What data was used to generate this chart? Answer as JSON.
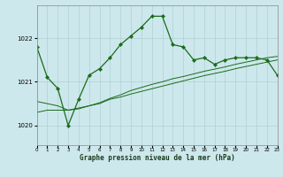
{
  "xlabel": "Graphe pression niveau de la mer (hPa)",
  "bg_color": "#cde8ec",
  "grid_color": "#b0d0d4",
  "line_color": "#1a6b1a",
  "ylim": [
    1019.55,
    1022.75
  ],
  "xlim": [
    0,
    23
  ],
  "yticks": [
    1020,
    1021,
    1022
  ],
  "xticks": [
    0,
    1,
    2,
    3,
    4,
    5,
    6,
    7,
    8,
    9,
    10,
    11,
    12,
    13,
    14,
    15,
    16,
    17,
    18,
    19,
    20,
    21,
    22,
    23
  ],
  "line1_x": [
    0,
    1,
    2,
    3,
    4,
    5,
    6,
    7,
    8,
    9,
    10,
    11,
    12,
    13,
    14,
    15,
    16,
    17,
    18,
    19,
    20,
    21,
    22,
    23
  ],
  "line1_y": [
    1021.8,
    1021.1,
    1020.85,
    1020.0,
    1020.6,
    1021.15,
    1021.3,
    1021.55,
    1021.85,
    1022.05,
    1022.25,
    1022.5,
    1022.5,
    1021.85,
    1021.8,
    1021.5,
    1021.55,
    1021.4,
    1021.5,
    1021.55,
    1021.55,
    1021.55,
    1021.5,
    1021.15
  ],
  "line2_x": [
    0,
    1,
    2,
    3,
    4,
    5,
    6,
    7,
    8,
    9,
    10,
    11,
    12,
    13,
    14,
    15,
    16,
    17,
    18,
    19,
    20,
    21,
    22,
    23
  ],
  "line2_y": [
    1020.3,
    1020.35,
    1020.35,
    1020.35,
    1020.4,
    1020.45,
    1020.5,
    1020.6,
    1020.65,
    1020.72,
    1020.78,
    1020.84,
    1020.9,
    1020.96,
    1021.02,
    1021.08,
    1021.14,
    1021.19,
    1021.24,
    1021.3,
    1021.35,
    1021.4,
    1021.45,
    1021.5
  ],
  "line3_x": [
    0,
    1,
    2,
    3,
    4,
    5,
    6,
    7,
    8,
    9,
    10,
    11,
    12,
    13,
    14,
    15,
    16,
    17,
    18,
    19,
    20,
    21,
    22,
    23
  ],
  "line3_y": [
    1020.55,
    1020.5,
    1020.45,
    1020.35,
    1020.38,
    1020.45,
    1020.52,
    1020.62,
    1020.7,
    1020.8,
    1020.87,
    1020.94,
    1021.0,
    1021.07,
    1021.12,
    1021.18,
    1021.24,
    1021.29,
    1021.34,
    1021.4,
    1021.45,
    1021.5,
    1021.55,
    1021.58
  ]
}
